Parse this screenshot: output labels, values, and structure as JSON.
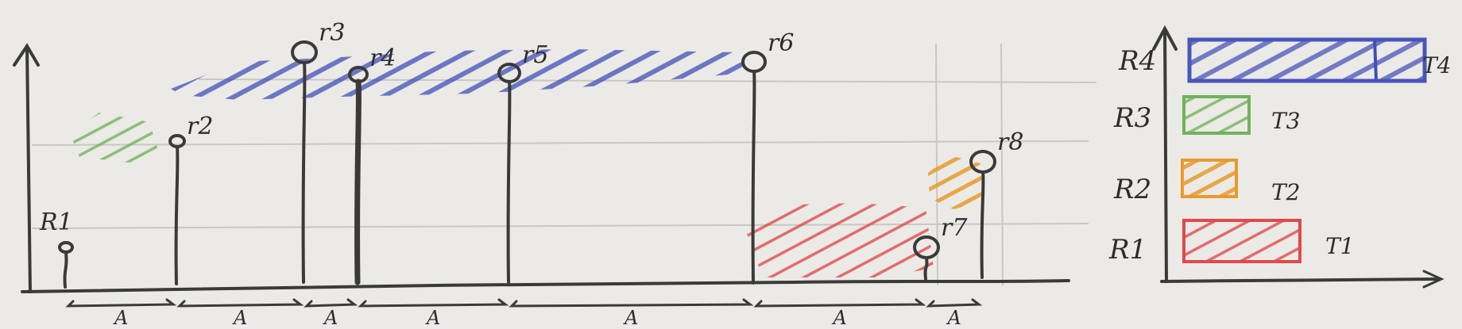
{
  "colors": {
    "paper": "#eceae6",
    "pencil": "#3a3a3a",
    "blue": "#3f4fb8",
    "green": "#6fb35a",
    "orange": "#e79a2e",
    "red": "#de4b4b"
  },
  "timeline": {
    "points": [
      {
        "label": "R1",
        "level": 1,
        "color": "red"
      },
      {
        "label": "r2",
        "level": 3,
        "color": "green"
      },
      {
        "label": "r3",
        "level": 4,
        "color": "blue"
      },
      {
        "label": "r4",
        "level": 4,
        "color": "blue"
      },
      {
        "label": "r5",
        "level": 4,
        "color": "blue"
      },
      {
        "label": "r6",
        "level": 4,
        "color": "blue"
      },
      {
        "label": "r7",
        "level": 1,
        "color": "red"
      },
      {
        "label": "r8",
        "level": 2,
        "color": "orange"
      }
    ],
    "gap_labels": [
      "A",
      "A",
      "A",
      "A",
      "A",
      "A",
      "A"
    ]
  },
  "legend": {
    "rows": [
      {
        "row_label": "R4",
        "bar_label": "T4",
        "color": "blue"
      },
      {
        "row_label": "R3",
        "bar_label": "T3",
        "color": "green"
      },
      {
        "row_label": "R2",
        "bar_label": "T2",
        "color": "orange"
      },
      {
        "row_label": "R1",
        "bar_label": "T1",
        "color": "red"
      }
    ]
  }
}
